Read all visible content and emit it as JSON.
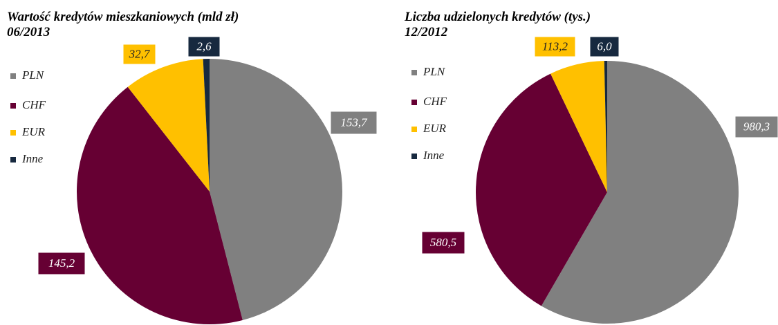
{
  "chart_data": [
    {
      "type": "pie",
      "title": "Wartość kredytów mieszkaniowych (mld zł)",
      "subtitle": "06/2013",
      "categories": [
        "PLN",
        "CHF",
        "EUR",
        "Inne"
      ],
      "values": [
        153.7,
        145.2,
        32.7,
        2.6
      ],
      "value_labels": [
        "153,7",
        "145,2",
        "32,7",
        "2,6"
      ],
      "colors": [
        "#808080",
        "#660033",
        "#ffc000",
        "#17293f"
      ]
    },
    {
      "type": "pie",
      "title": "Liczba udzielonych kredytów  (tys.)",
      "subtitle": "12/2012",
      "categories": [
        "PLN",
        "CHF",
        "EUR",
        "Inne"
      ],
      "values": [
        980.3,
        580.5,
        113.2,
        6.0
      ],
      "value_labels": [
        "980,3",
        "580,5",
        "113,2",
        "6,0"
      ],
      "colors": [
        "#808080",
        "#660033",
        "#ffc000",
        "#17293f"
      ]
    }
  ]
}
